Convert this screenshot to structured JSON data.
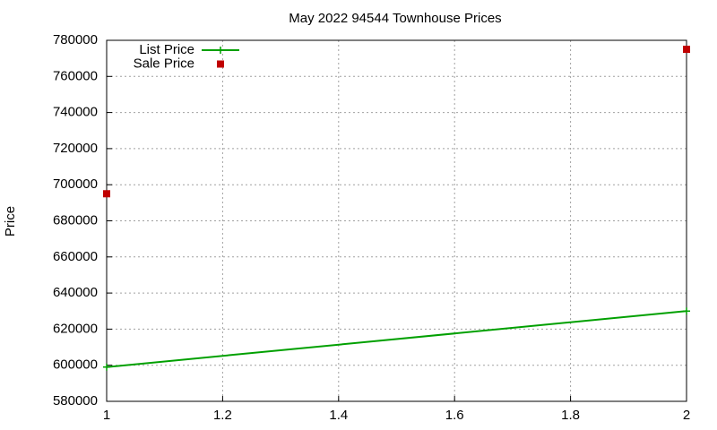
{
  "chart_data": {
    "type": "line",
    "title": "May 2022 94544 Townhouse Prices",
    "y_label": "Price",
    "x": [
      1,
      2
    ],
    "series": [
      {
        "name": "List Price",
        "color": "#00a000",
        "mode": "lines+points",
        "values": [
          599000,
          630000
        ]
      },
      {
        "name": "Sale Price",
        "color": "#c00000",
        "mode": "points",
        "values": [
          695000,
          775000
        ]
      }
    ],
    "xlim": [
      1,
      2
    ],
    "xticks": [
      1,
      1.2,
      1.4,
      1.6,
      1.8,
      2
    ],
    "ylim": [
      580000,
      780000
    ],
    "yticks": [
      580000,
      600000,
      620000,
      640000,
      660000,
      680000,
      700000,
      720000,
      740000,
      760000,
      780000
    ],
    "grid": true,
    "legend": "top-left"
  }
}
